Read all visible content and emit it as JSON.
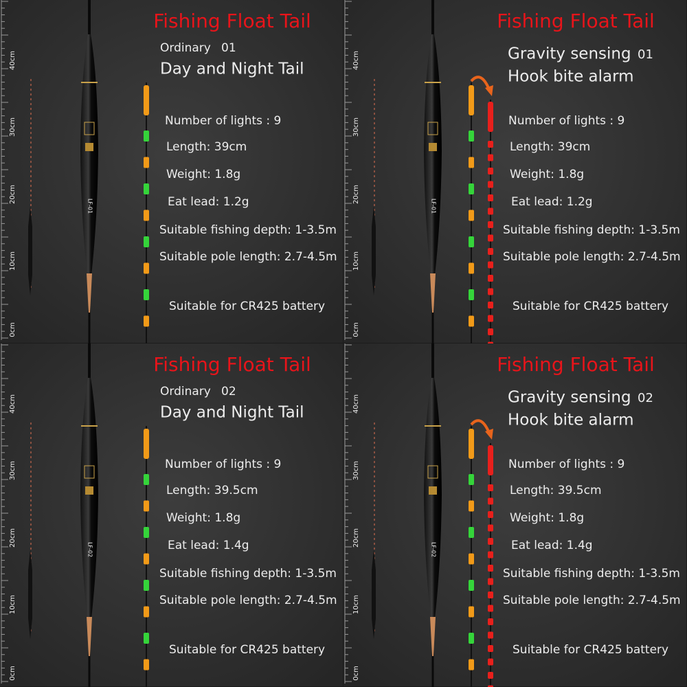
{
  "panels": [
    {
      "title": "Fishing Float Tail",
      "mode": "Ordinary",
      "number": "01",
      "headline": "Day and Night Tail",
      "float_label": "LF-01",
      "ruler": [
        "40cm",
        "30cm",
        "20cm",
        "10cm",
        "0cm"
      ],
      "specs": [
        "Number of lights : 9",
        "Length: 39cm",
        "Weight: 1.8g",
        "Eat lead: 1.2g",
        "Suitable fishing depth: 1-3.5m",
        "Suitable pole length: 2.7-4.5m"
      ],
      "battery": "Suitable for CR425 battery"
    },
    {
      "title": "Fishing Float Tail",
      "mode": "Gravity sensing",
      "number": "01",
      "headline": "Hook bite alarm",
      "float_label": "LF-01",
      "ruler": [
        "40cm",
        "30cm",
        "20cm",
        "10cm",
        "0cm"
      ],
      "specs": [
        "Number of lights : 9",
        "Length: 39cm",
        "Weight: 1.8g",
        "Eat lead: 1.2g",
        "Suitable fishing depth: 1-3.5m",
        "Suitable pole length: 2.7-4.5m"
      ],
      "battery": "Suitable for CR425 battery"
    },
    {
      "title": "Fishing Float Tail",
      "mode": "Ordinary",
      "number": "02",
      "headline": "Day and Night Tail",
      "float_label": "LF-02",
      "ruler": [
        "40cm",
        "30cm",
        "20cm",
        "10cm",
        "0cm"
      ],
      "specs": [
        "Number of lights : 9",
        "Length: 39.5cm",
        "Weight: 1.8g",
        "Eat lead: 1.4g",
        "Suitable fishing depth: 1-3.5m",
        "Suitable pole length: 2.7-4.5m"
      ],
      "battery": "Suitable for CR425 battery"
    },
    {
      "title": "Fishing Float Tail",
      "mode": "Gravity sensing",
      "number": "02",
      "headline": "Hook bite alarm",
      "float_label": "LF-02",
      "ruler": [
        "40cm",
        "30cm",
        "20cm",
        "10cm",
        "0cm"
      ],
      "specs": [
        "Number of lights : 9",
        "Length: 39.5cm",
        "Weight: 1.8g",
        "Eat lead: 1.4g",
        "Suitable fishing depth: 1-3.5m",
        "Suitable pole length: 2.7-4.5m"
      ],
      "battery": "Suitable for CR425 battery"
    }
  ]
}
